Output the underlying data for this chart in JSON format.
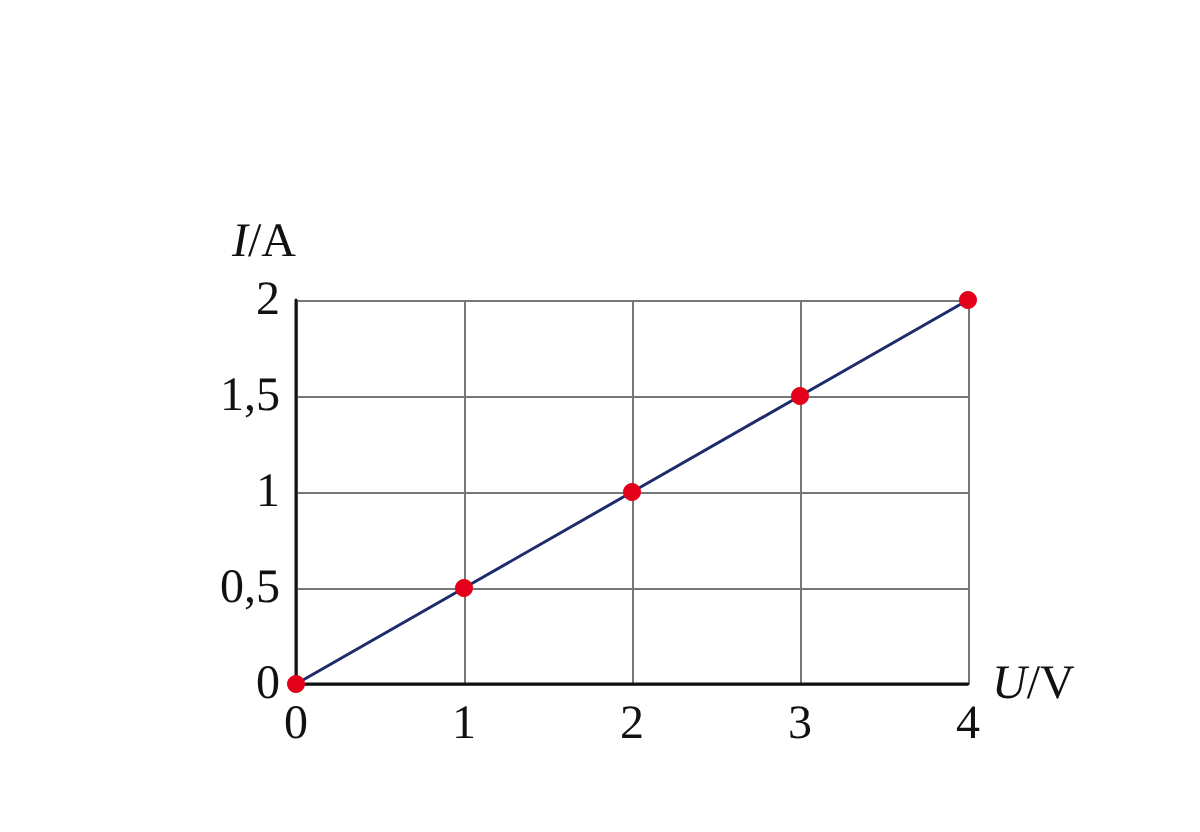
{
  "chart_data": {
    "type": "line",
    "xlabel": "U/V",
    "ylabel": "I/A",
    "x": [
      0,
      1,
      2,
      3,
      4
    ],
    "series": [
      {
        "color": "#1f2a6b",
        "values": [
          0,
          0.5,
          1,
          1.5,
          2
        ]
      }
    ],
    "marker": "circle",
    "line_style": "solid",
    "grid": true,
    "xlim": [
      0,
      4
    ],
    "xticks": [
      0,
      1,
      2,
      3,
      4
    ],
    "ylim": [
      0,
      2
    ],
    "yticks": [
      0,
      {
        "value": 0.5,
        "label": "0,5"
      },
      1,
      {
        "value": 1.5,
        "label": "1,5"
      },
      2
    ]
  }
}
